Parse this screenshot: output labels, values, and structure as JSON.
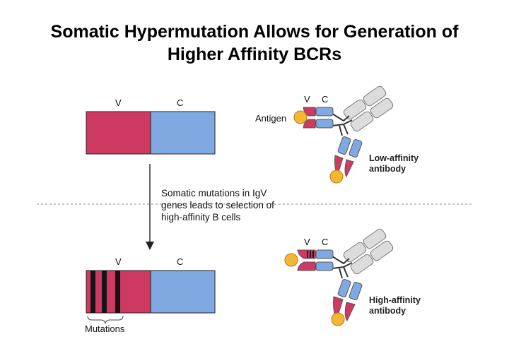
{
  "title": {
    "line1": "Somatic Hypermutation Allows for Generation of",
    "line2": "Higher Affinity BCRs"
  },
  "gene_top": {
    "v_label": "V",
    "c_label": "C"
  },
  "gene_bottom": {
    "v_label": "V",
    "c_label": "C",
    "mutations_label": "Mutations"
  },
  "description": {
    "line1": "Somatic mutations in IgV",
    "line2": "genes leads to selection of",
    "line3": "high-affinity B cells"
  },
  "antibody_top": {
    "v_label": "V",
    "c_label": "C",
    "antigen_label": "Antigen",
    "name_line1": "Low-affinity",
    "name_line2": "antibody"
  },
  "antibody_bottom": {
    "v_label": "V",
    "c_label": "C",
    "name_line1": "High-affinity",
    "name_line2": "antibody"
  },
  "colors": {
    "v_region": "#cf3a62",
    "c_region": "#7fa9e0",
    "antigen": "#f5b733",
    "constant_gray": "#dcdcdc"
  }
}
